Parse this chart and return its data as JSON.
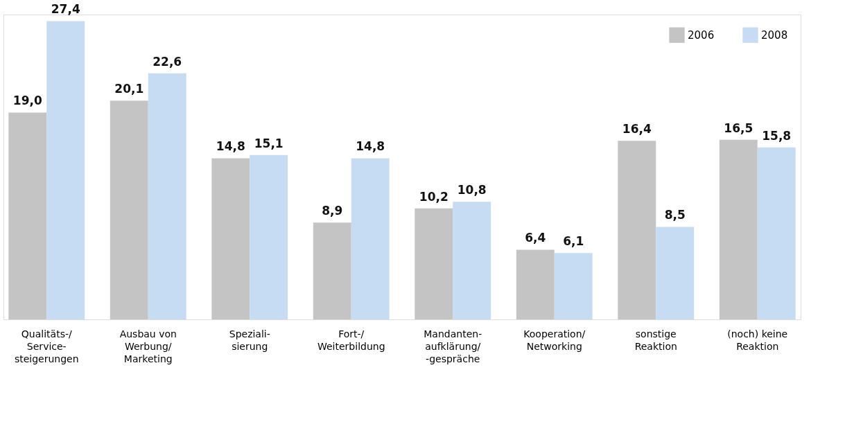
{
  "chart_data": {
    "type": "bar",
    "categories": [
      "Qualitäts-/\nService-\nsteigerungen",
      "Ausbau von\nWerbung/\nMarketing",
      "Speziali-\nsierung",
      "Fort-/\nWeiterbildung",
      "Mandanten-\naufklärung/\n-gespräche",
      "Kooperation/\nNetworking",
      "sonstige\nReaktion",
      "(noch) keine\nReaktion"
    ],
    "series": [
      {
        "name": "2006",
        "color": "#c4c4c4",
        "values": [
          19.0,
          20.1,
          14.8,
          8.9,
          10.2,
          6.4,
          16.4,
          16.5
        ],
        "value_labels": [
          "19,0",
          "20,1",
          "14,8",
          "8,9",
          "10,2",
          "6,4",
          "16,4",
          "16,5"
        ]
      },
      {
        "name": "2008",
        "color": "#c6dcf3",
        "values": [
          27.4,
          22.6,
          15.1,
          14.8,
          10.8,
          6.1,
          8.5,
          15.8
        ],
        "value_labels": [
          "27,4",
          "22,6",
          "15,1",
          "14,8",
          "10,8",
          "6,1",
          "8,5",
          "15,8"
        ]
      }
    ],
    "legend": "top right",
    "grid": false
  }
}
